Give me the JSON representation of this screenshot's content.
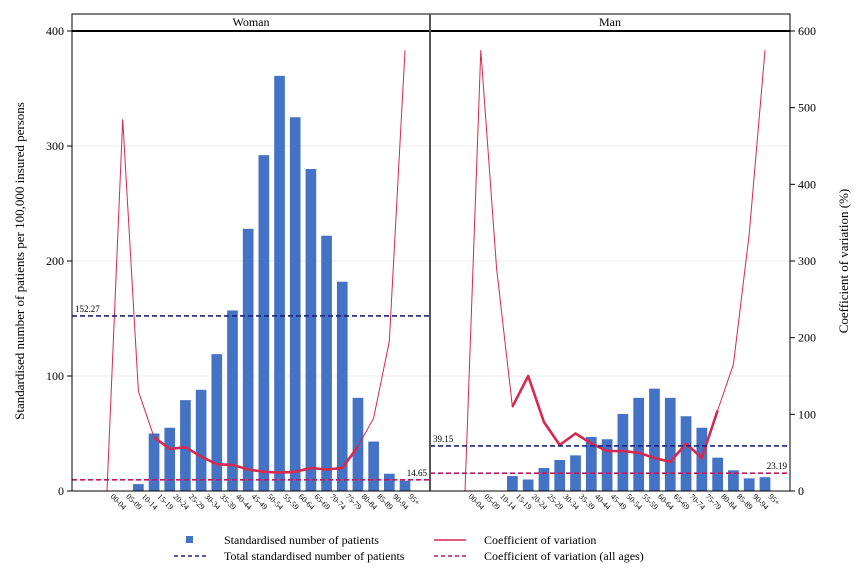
{
  "chart_data": {
    "type": "bar",
    "ylabel": "Standardised number of patients per 100,000 insured persons",
    "y2label": "Coefficient of variation (%)",
    "ylim": [
      0,
      400
    ],
    "y2lim": [
      0,
      600
    ],
    "yticks": [
      0,
      100,
      200,
      300,
      400
    ],
    "y2ticks": [
      0,
      100,
      200,
      300,
      400,
      500,
      600
    ],
    "categories": [
      "00-04",
      "05-09",
      "10-14",
      "15-19",
      "20-24",
      "25-29",
      "30-34",
      "35-39",
      "40-44",
      "45-49",
      "50-54",
      "55-59",
      "60-64",
      "65-69",
      "70-74",
      "75-79",
      "80-84",
      "85-89",
      "90-94",
      "95+"
    ],
    "panels": [
      {
        "title": "Woman",
        "bar_values": [
          0,
          0,
          6,
          50,
          55,
          79,
          88,
          119,
          157,
          228,
          292,
          361,
          325,
          280,
          222,
          182,
          81,
          43,
          15,
          9
        ],
        "cv_values": [
          0,
          485,
          130,
          70,
          55,
          57,
          45,
          35,
          34,
          28,
          25,
          24,
          25,
          30,
          28,
          30,
          58,
          95,
          195,
          575
        ],
        "cv_thick_range": [
          3,
          16
        ],
        "total_ref": 152.27,
        "total_ref_label": "152.27",
        "cv_ref": 14.65,
        "cv_ref_label": "14.65"
      },
      {
        "title": "Man",
        "bar_values": [
          0,
          0,
          0,
          13,
          10,
          20,
          27,
          31,
          47,
          45,
          67,
          81,
          89,
          81,
          65,
          55,
          29,
          18,
          11,
          12
        ],
        "cv_values": [
          0,
          575,
          290,
          110,
          150,
          90,
          60,
          75,
          62,
          52,
          52,
          50,
          43,
          38,
          62,
          43,
          105,
          165,
          335,
          575
        ],
        "cv_thick_range": [
          3,
          16
        ],
        "total_ref": 39.15,
        "total_ref_label": "39.15",
        "cv_ref": 23.19,
        "cv_ref_label": "23.19"
      }
    ],
    "colors": {
      "bar": "#4472c4",
      "cv_line": "#d6294e",
      "total_ref": "#1a237e",
      "cv_ref": "#c2185b",
      "panel_header": "#ffffff"
    },
    "legend": {
      "placement": "bottom",
      "items": [
        {
          "key": "bar",
          "label": "Standardised number of patients"
        },
        {
          "key": "cv_line",
          "label": "Coefficient of variation"
        },
        {
          "key": "total_ref",
          "label": "Total standardised number of patients"
        },
        {
          "key": "cv_ref",
          "label": "Coefficient of variation (all ages)"
        }
      ]
    }
  }
}
